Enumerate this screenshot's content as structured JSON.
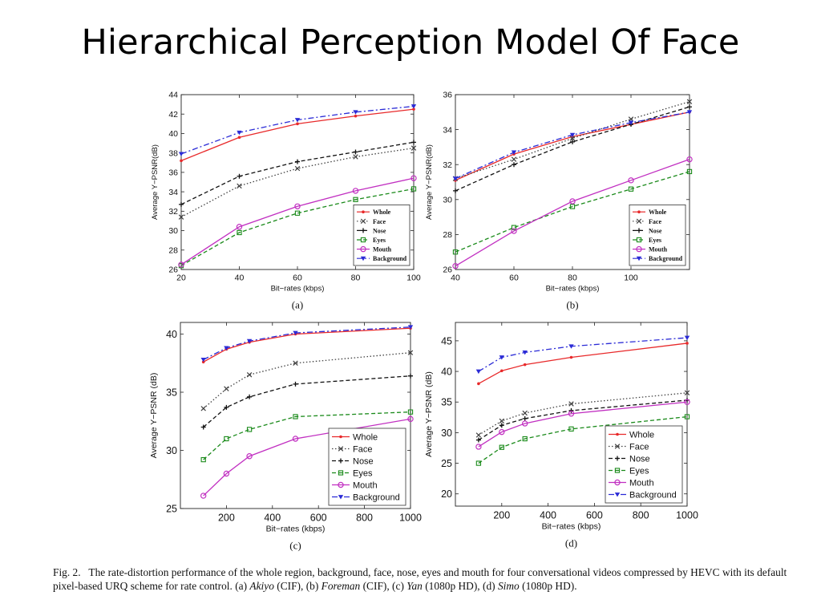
{
  "slide": {
    "title": "Hierarchical Perception Model Of Face"
  },
  "caption": {
    "prefix": "Fig. 2.   The rate-distortion performance of the whole region, background, face, nose, eyes and mouth for four conversational videos compressed by HEVC with its default pixel-based URQ scheme for rate control. (a) ",
    "video_a": "Akiyo",
    "after_a": " (CIF), (b) ",
    "video_b": "Foreman",
    "after_b": " (CIF), (c) ",
    "video_c": "Yan",
    "after_c": " (1080p HD), (d) ",
    "video_d": "Simo",
    "after_d": " (1080p HD)."
  },
  "series_styles": [
    {
      "color": "#e8292a",
      "marker": "dot",
      "dash": ""
    },
    {
      "color": "#404040",
      "marker": "x",
      "dash": "1.5,2.5"
    },
    {
      "color": "#111111",
      "marker": "plus",
      "dash": "5,3"
    },
    {
      "color": "#1a8a1a",
      "marker": "square",
      "dash": "5,3"
    },
    {
      "color": "#c12fc1",
      "marker": "circle",
      "dash": ""
    },
    {
      "color": "#2b2bd6",
      "marker": "triangle",
      "dash": "7,3,2,3"
    }
  ],
  "chart_data": [
    {
      "type": "line",
      "panel_label": "(a)",
      "xlabel": "Bit−rates (kbps)",
      "ylabel": "Average Y−PSNR(dB)",
      "xlim": [
        20,
        100
      ],
      "ylim": [
        26,
        44
      ],
      "xticks": [
        20,
        40,
        60,
        80,
        100
      ],
      "yticks": [
        26,
        28,
        30,
        32,
        34,
        36,
        38,
        40,
        42,
        44
      ],
      "grid": false,
      "legend_position": "bottom-right",
      "legend_style": "small",
      "x": [
        20,
        40,
        60,
        80,
        100
      ],
      "series": [
        {
          "name": "Whole",
          "values": [
            37.2,
            39.6,
            41.0,
            41.8,
            42.5
          ]
        },
        {
          "name": "Face",
          "values": [
            31.4,
            34.6,
            36.4,
            37.6,
            38.5
          ]
        },
        {
          "name": "Nose",
          "values": [
            32.7,
            35.6,
            37.1,
            38.1,
            39.1
          ]
        },
        {
          "name": "Eyes",
          "values": [
            26.4,
            29.8,
            31.8,
            33.2,
            34.3
          ]
        },
        {
          "name": "Mouth",
          "values": [
            26.5,
            30.4,
            32.5,
            34.1,
            35.4
          ]
        },
        {
          "name": "Background",
          "values": [
            37.9,
            40.1,
            41.4,
            42.2,
            42.8
          ]
        }
      ]
    },
    {
      "type": "line",
      "panel_label": "(b)",
      "xlabel": "Bit−rates (kbps)",
      "ylabel": "Average Y−PSNR(dB)",
      "xlim": [
        40,
        120
      ],
      "ylim": [
        26,
        36
      ],
      "xticks": [
        40,
        60,
        80,
        100
      ],
      "yticks": [
        26,
        28,
        30,
        32,
        34,
        36
      ],
      "grid": false,
      "legend_position": "bottom-right",
      "legend_style": "small",
      "x": [
        40,
        60,
        80,
        100,
        120
      ],
      "series": [
        {
          "name": "Whole",
          "values": [
            31.1,
            32.6,
            33.6,
            34.3,
            35.0
          ]
        },
        {
          "name": "Face",
          "values": [
            31.2,
            32.3,
            33.5,
            34.6,
            35.6
          ]
        },
        {
          "name": "Nose",
          "values": [
            30.5,
            32.0,
            33.3,
            34.3,
            35.3
          ]
        },
        {
          "name": "Eyes",
          "values": [
            27.0,
            28.4,
            29.6,
            30.6,
            31.6
          ]
        },
        {
          "name": "Mouth",
          "values": [
            26.2,
            28.2,
            29.9,
            31.1,
            32.3
          ]
        },
        {
          "name": "Background",
          "values": [
            31.2,
            32.7,
            33.7,
            34.4,
            35.0
          ]
        }
      ]
    },
    {
      "type": "line",
      "panel_label": "(c)",
      "xlabel": "Bit−rates (kbps)",
      "ylabel": "Average Y−PSNR (dB)",
      "xlim": [
        0,
        1000
      ],
      "ylim": [
        25,
        41
      ],
      "xticks": [
        200,
        400,
        600,
        800,
        1000
      ],
      "yticks": [
        25,
        30,
        35,
        40
      ],
      "grid": false,
      "legend_position": "bottom-right",
      "legend_style": "large",
      "x": [
        100,
        200,
        300,
        500,
        1000
      ],
      "series": [
        {
          "name": "Whole",
          "values": [
            37.6,
            38.7,
            39.3,
            40.0,
            40.5
          ]
        },
        {
          "name": "Face",
          "values": [
            33.6,
            35.3,
            36.5,
            37.5,
            38.4
          ]
        },
        {
          "name": "Nose",
          "values": [
            32.0,
            33.7,
            34.6,
            35.7,
            36.4
          ]
        },
        {
          "name": "Eyes",
          "values": [
            29.2,
            31.0,
            31.8,
            32.9,
            33.3
          ]
        },
        {
          "name": "Mouth",
          "values": [
            26.1,
            28.0,
            29.5,
            31.0,
            32.7
          ]
        },
        {
          "name": "Background",
          "values": [
            37.8,
            38.8,
            39.4,
            40.1,
            40.6
          ]
        }
      ]
    },
    {
      "type": "line",
      "panel_label": "(d)",
      "xlabel": "Bit−rates (kbps)",
      "ylabel": "Average Y−PSNR (dB)",
      "xlim": [
        0,
        1000
      ],
      "ylim": [
        18,
        48
      ],
      "xticks": [
        200,
        400,
        600,
        800,
        1000
      ],
      "yticks": [
        20,
        25,
        30,
        35,
        40,
        45
      ],
      "grid": false,
      "legend_position": "bottom-right",
      "legend_style": "large",
      "x": [
        100,
        200,
        300,
        500,
        1000
      ],
      "series": [
        {
          "name": "Whole",
          "values": [
            38.0,
            40.1,
            41.1,
            42.3,
            44.6
          ]
        },
        {
          "name": "Face",
          "values": [
            29.6,
            31.9,
            33.2,
            34.7,
            36.5
          ]
        },
        {
          "name": "Nose",
          "values": [
            28.8,
            31.2,
            32.3,
            33.6,
            35.3
          ]
        },
        {
          "name": "Eyes",
          "values": [
            25.0,
            27.6,
            29.0,
            30.6,
            32.6
          ]
        },
        {
          "name": "Mouth",
          "values": [
            27.7,
            30.1,
            31.5,
            33.1,
            35.0
          ]
        },
        {
          "name": "Background",
          "values": [
            40.0,
            42.3,
            43.1,
            44.1,
            45.5
          ]
        }
      ]
    }
  ]
}
